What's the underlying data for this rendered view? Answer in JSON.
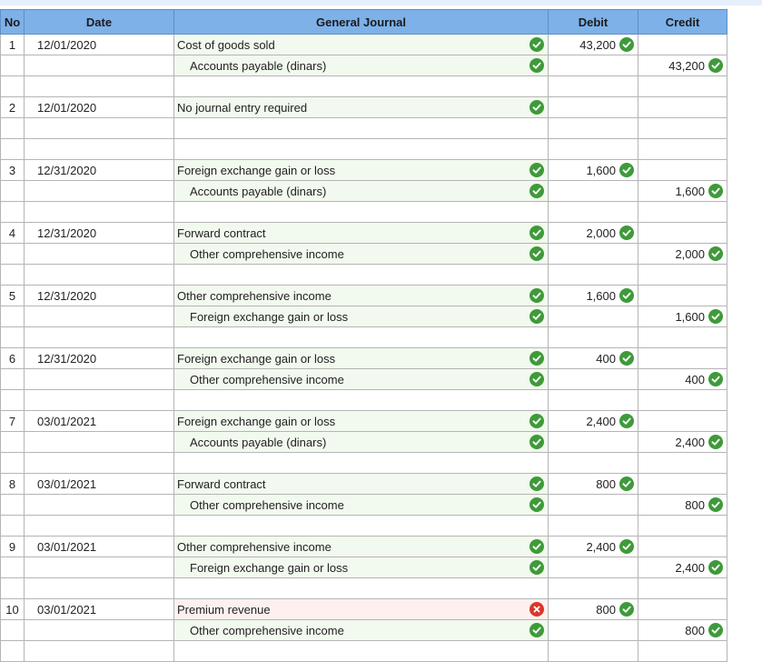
{
  "headers": {
    "no": "No",
    "date": "Date",
    "journal": "General Journal",
    "debit": "Debit",
    "credit": "Credit"
  },
  "colors": {
    "header_bg": "#7db1e8",
    "correct": "#3f9a3a",
    "incorrect": "#d9372b",
    "highlight": "#f2f9ee"
  },
  "entries": [
    {
      "no": "1",
      "date": "12/01/2020",
      "lines": [
        {
          "account": "Cost of goods sold",
          "debit": "43,200",
          "credit": "",
          "status": "correct"
        },
        {
          "account": "Accounts payable (dinars)",
          "debit": "",
          "credit": "43,200",
          "status": "correct"
        }
      ]
    },
    {
      "no": "2",
      "date": "12/01/2020",
      "lines": [
        {
          "account": "No journal entry required",
          "debit": "",
          "credit": "",
          "status": "correct"
        }
      ]
    },
    {
      "no": "3",
      "date": "12/31/2020",
      "lines": [
        {
          "account": "Foreign exchange gain or loss",
          "debit": "1,600",
          "credit": "",
          "status": "correct"
        },
        {
          "account": "Accounts payable (dinars)",
          "debit": "",
          "credit": "1,600",
          "status": "correct"
        }
      ]
    },
    {
      "no": "4",
      "date": "12/31/2020",
      "lines": [
        {
          "account": "Forward contract",
          "debit": "2,000",
          "credit": "",
          "status": "correct"
        },
        {
          "account": "Other comprehensive income",
          "debit": "",
          "credit": "2,000",
          "status": "correct"
        }
      ]
    },
    {
      "no": "5",
      "date": "12/31/2020",
      "lines": [
        {
          "account": "Other comprehensive income",
          "debit": "1,600",
          "credit": "",
          "status": "correct"
        },
        {
          "account": "Foreign exchange gain or loss",
          "debit": "",
          "credit": "1,600",
          "status": "correct"
        }
      ]
    },
    {
      "no": "6",
      "date": "12/31/2020",
      "lines": [
        {
          "account": "Foreign exchange gain or loss",
          "debit": "400",
          "credit": "",
          "status": "correct"
        },
        {
          "account": "Other comprehensive income",
          "debit": "",
          "credit": "400",
          "status": "correct"
        }
      ]
    },
    {
      "no": "7",
      "date": "03/01/2021",
      "lines": [
        {
          "account": "Foreign exchange gain or loss",
          "debit": "2,400",
          "credit": "",
          "status": "correct"
        },
        {
          "account": "Accounts payable (dinars)",
          "debit": "",
          "credit": "2,400",
          "status": "correct"
        }
      ]
    },
    {
      "no": "8",
      "date": "03/01/2021",
      "lines": [
        {
          "account": "Forward contract",
          "debit": "800",
          "credit": "",
          "status": "correct"
        },
        {
          "account": "Other comprehensive income",
          "debit": "",
          "credit": "800",
          "status": "correct"
        }
      ]
    },
    {
      "no": "9",
      "date": "03/01/2021",
      "lines": [
        {
          "account": "Other comprehensive income",
          "debit": "2,400",
          "credit": "",
          "status": "correct"
        },
        {
          "account": "Foreign exchange gain or loss",
          "debit": "",
          "credit": "2,400",
          "status": "correct"
        }
      ]
    },
    {
      "no": "10",
      "date": "03/01/2021",
      "lines": [
        {
          "account": "Premium revenue",
          "debit": "800",
          "credit": "",
          "status": "incorrect"
        },
        {
          "account": "Other comprehensive income",
          "debit": "",
          "credit": "800",
          "status": "correct"
        }
      ]
    }
  ]
}
